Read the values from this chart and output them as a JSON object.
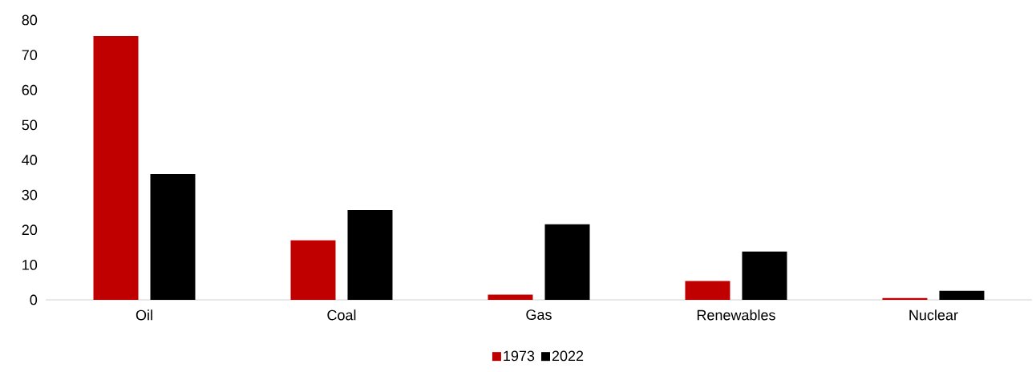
{
  "chart_data": {
    "type": "bar",
    "categories": [
      "Oil",
      "Coal",
      "Gas",
      "Renewables",
      "Nuclear"
    ],
    "series": [
      {
        "name": "1973",
        "color": "#c00000",
        "values": [
          75.4,
          17.0,
          1.5,
          5.4,
          0.5
        ]
      },
      {
        "name": "2022",
        "color": "#000000",
        "values": [
          36.0,
          25.7,
          21.6,
          13.8,
          2.6
        ]
      }
    ],
    "ylim": [
      0,
      80
    ],
    "yticks": [
      0,
      10,
      20,
      30,
      40,
      50,
      60,
      70,
      80
    ],
    "legend": "bottom"
  }
}
